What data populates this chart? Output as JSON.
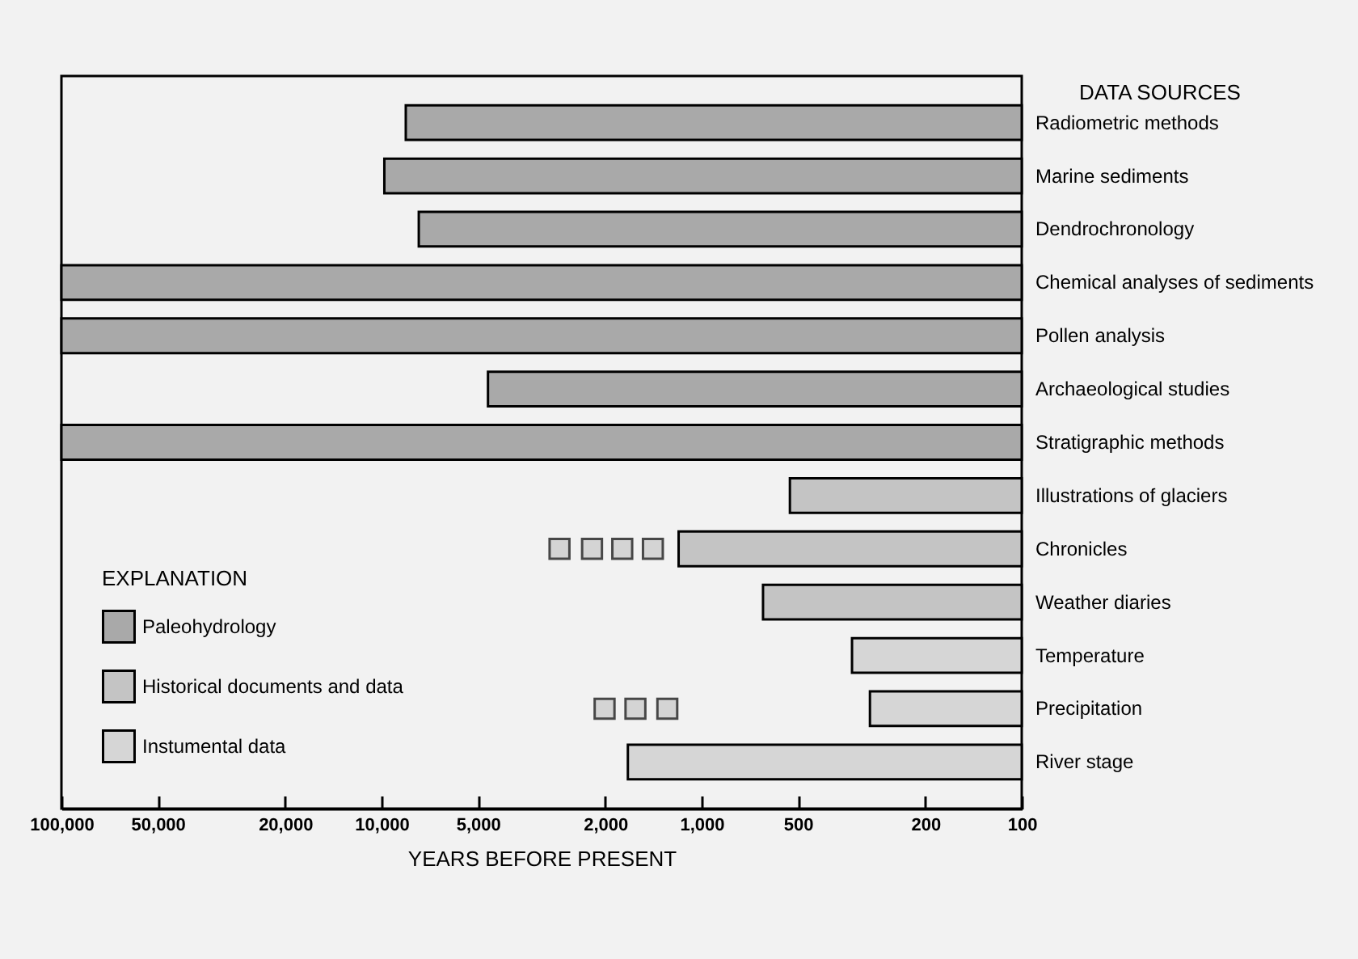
{
  "chart_data": {
    "type": "bar",
    "orientation": "horizontal",
    "xlabel": "YEARS BEFORE PRESENT",
    "ylabel": "DATA SOURCES",
    "legend_title": "EXPLANATION",
    "legend": "bottom left",
    "log": "x",
    "marker": "square",
    "categories": [
      "Radiometric methods",
      "Marine sediments",
      "Dendrochronology",
      "Chemical analyses of sediments",
      "Pollen analysis",
      "Archaeological studies",
      "Stratigraphic methods",
      "Illustrations of glaciers",
      "Chronicles",
      "Weather diaries",
      "Temperature",
      "Precipitation",
      "River stage"
    ],
    "xlim": [
      100000,
      100
    ],
    "xticks": [
      {
        "value": 100000,
        "label": "100,000"
      },
      {
        "value": 50000,
        "label": "50,000"
      },
      {
        "value": 20000,
        "label": "20,000"
      },
      {
        "value": 10000,
        "label": "10,000"
      },
      {
        "value": 5000,
        "label": "5,000"
      },
      {
        "value": 2000,
        "label": "2,000"
      },
      {
        "value": 1000,
        "label": "1,000"
      },
      500,
      200,
      100
    ],
    "series": [
      {
        "name": "Paleohydrology",
        "color": "#a9a9a9",
        "values": [
          8400,
          9800,
          7650,
          100000,
          100000,
          4650,
          100000,
          null,
          null,
          null,
          null,
          null,
          null
        ]
      },
      {
        "name": "Historical documents and data",
        "color": "#c4c4c4",
        "values": [
          null,
          null,
          null,
          null,
          null,
          null,
          null,
          530,
          1180,
          643,
          null,
          null,
          null
        ]
      },
      {
        "name": "Instumental data",
        "color": "#d6d6d6",
        "values": [
          null,
          null,
          null,
          null,
          null,
          null,
          null,
          null,
          null,
          null,
          339,
          298,
          1700
        ]
      },
      {
        "type": "scatter",
        "color": "#c8c8c8",
        "values": [
          null,
          null,
          null,
          null,
          null,
          null,
          null,
          null,
          2780,
          null,
          null,
          2010,
          null
        ]
      },
      {
        "type": "scatter",
        "color": "#c8c8c8",
        "values": [
          null,
          null,
          null,
          null,
          null,
          null,
          null,
          null,
          2200,
          null,
          null,
          1610,
          null
        ]
      },
      {
        "type": "scatter",
        "color": "#c8c8c8",
        "values": [
          null,
          null,
          null,
          null,
          null,
          null,
          null,
          null,
          1770,
          null,
          null,
          1280,
          null
        ]
      },
      {
        "type": "scatter",
        "color": "#c8c8c8",
        "values": [
          null,
          null,
          null,
          null,
          null,
          null,
          null,
          null,
          1420,
          null,
          null,
          null,
          null
        ]
      }
    ]
  }
}
